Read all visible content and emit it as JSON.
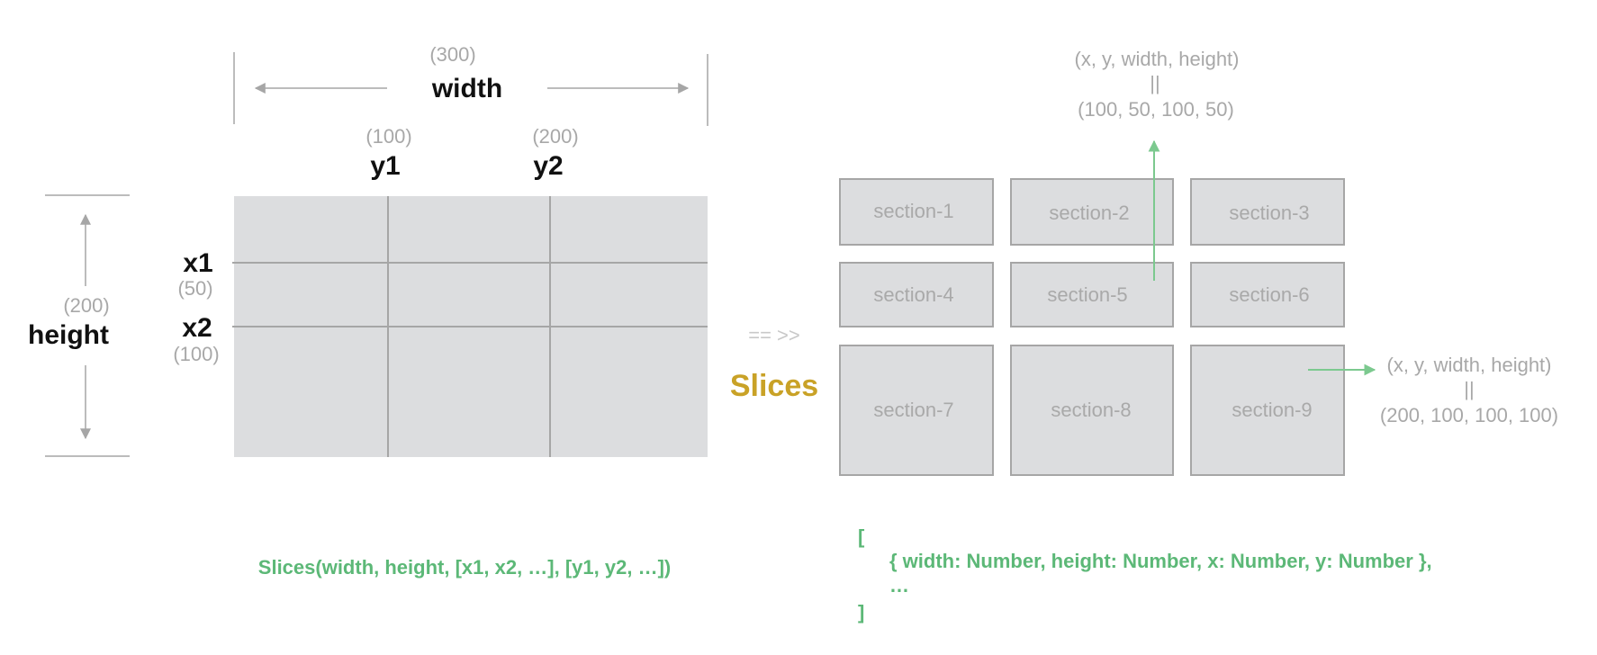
{
  "width_dim": {
    "value": "(300)",
    "label": "width"
  },
  "height_dim": {
    "value": "(200)",
    "label": "height"
  },
  "columns": [
    {
      "value": "(100)",
      "label": "y1"
    },
    {
      "value": "(200)",
      "label": "y2"
    }
  ],
  "rows": [
    {
      "label": "x1",
      "value": "(50)"
    },
    {
      "label": "x2",
      "value": "(100)"
    }
  ],
  "arrow_text": "== >>",
  "slices_label": "Slices",
  "sections": [
    "section-1",
    "section-2",
    "section-3",
    "section-4",
    "section-5",
    "section-6",
    "section-7",
    "section-8",
    "section-9"
  ],
  "top_annotation": {
    "line1": "(x, y, width, height)",
    "line2": "||",
    "line3": "(100, 50, 100, 50)"
  },
  "right_annotation": {
    "line1": "(x, y, width, height)",
    "line2": "||",
    "line3": "(200, 100, 100, 100)"
  },
  "signature": "Slices(width, height, [x1, x2, …], [y1, y2, …])",
  "result": {
    "open": "[",
    "item": "{ width: Number, height: Number, x: Number, y: Number },",
    "ellipsis": "…",
    "close": "]"
  },
  "colors": {
    "grid_fill": "#dcdddf",
    "grid_line": "#a6a6a6",
    "accent_green": "#7cc98f",
    "slices_gold": "#c9a227"
  }
}
